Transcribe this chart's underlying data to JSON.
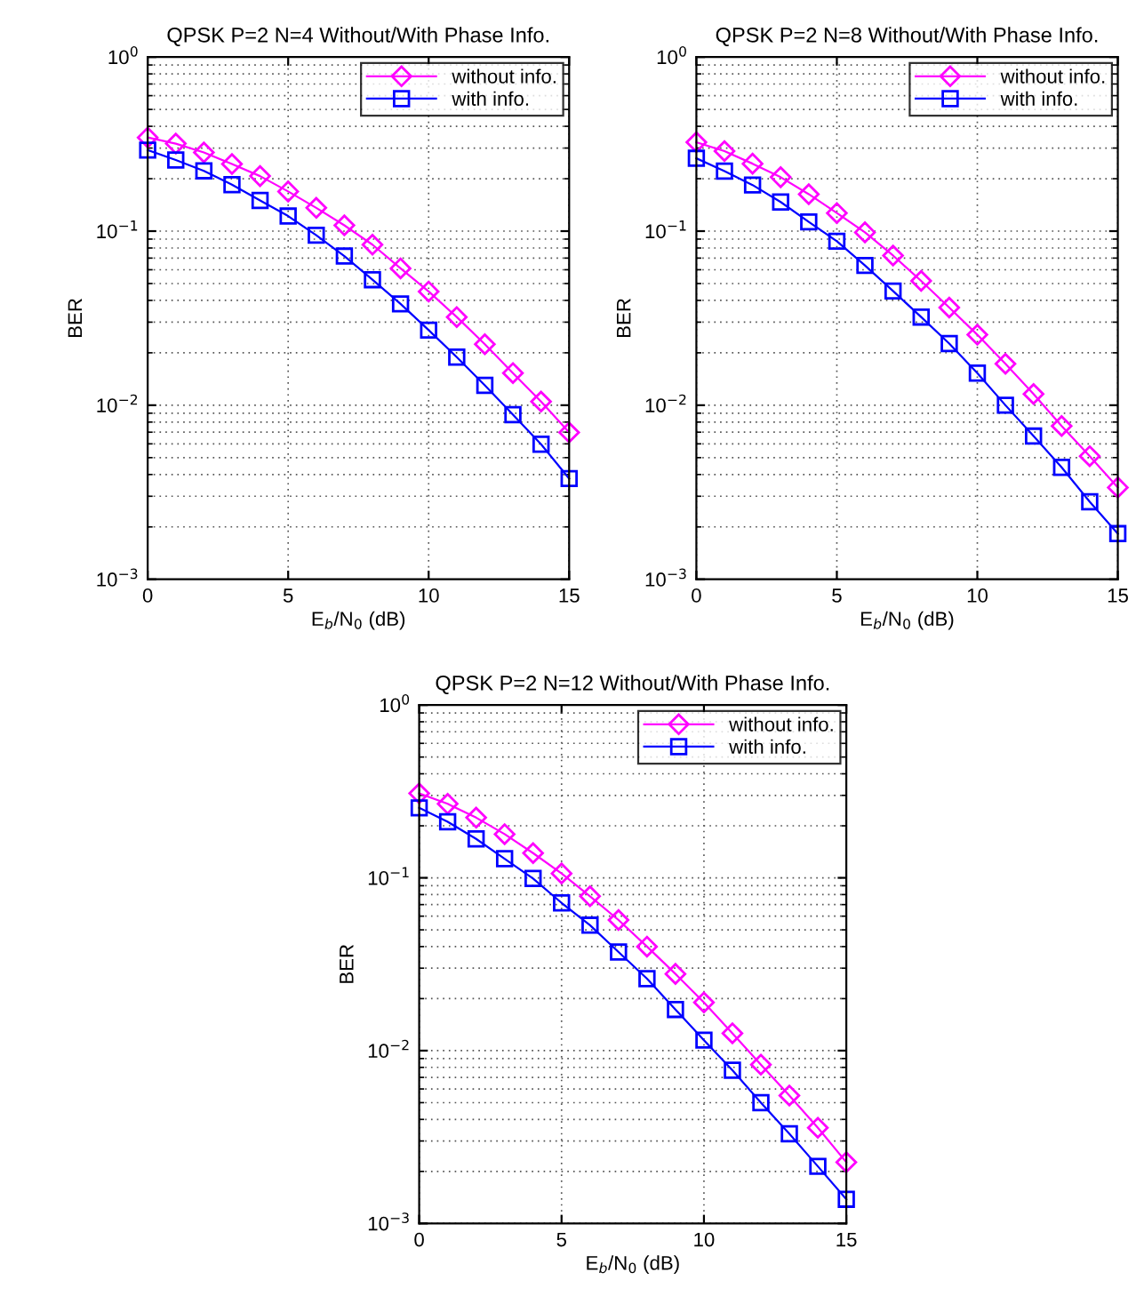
{
  "chart_data": [
    {
      "type": "line",
      "title": "QPSK P=2 N=4 Without/With Phase Info.",
      "xlabel": "E$_{b}$/N$_{0}$ (dB)",
      "ylabel": "BER",
      "log": "y",
      "grid": true,
      "legend": "top right",
      "x": [
        0,
        1,
        2,
        3,
        4,
        5,
        6,
        7,
        8,
        9,
        10,
        11,
        12,
        13,
        14,
        15
      ],
      "xlim": [
        0,
        15
      ],
      "xticks": [
        0,
        5,
        10,
        15
      ],
      "ylim": [
        0.001,
        1
      ],
      "yticks": [
        {
          "value": 0.001,
          "label": "10$^{−3}$"
        },
        {
          "value": 0.01,
          "label": "10$^{−2}$"
        },
        {
          "value": 0.1,
          "label": "10$^{−1}$"
        },
        {
          "value": 1,
          "label": "10$^{0}$"
        }
      ],
      "series": [
        {
          "name": "without info.",
          "color": "#ff00ff",
          "marker": "diamond",
          "values": [
            0.345,
            0.318,
            0.283,
            0.243,
            0.207,
            0.169,
            0.136,
            0.108,
            0.0836,
            0.0611,
            0.045,
            0.0321,
            0.0224,
            0.0153,
            0.0105,
            0.00698
          ]
        },
        {
          "name": "with info.",
          "color": "#0000ff",
          "marker": "square",
          "values": [
            0.292,
            0.256,
            0.222,
            0.185,
            0.15,
            0.122,
            0.0947,
            0.0719,
            0.0526,
            0.0382,
            0.027,
            0.0189,
            0.013,
            0.00883,
            0.00597,
            0.00379
          ]
        }
      ]
    },
    {
      "type": "line",
      "title": "QPSK P=2 N=8 Without/With Phase Info.",
      "xlabel": "E$_{b}$/N$_{0}$ (dB)",
      "ylabel": "BER",
      "log": "y",
      "grid": true,
      "legend": "top right",
      "x": [
        0,
        1,
        2,
        3,
        4,
        5,
        6,
        7,
        8,
        9,
        10,
        11,
        12,
        13,
        14,
        15
      ],
      "xlim": [
        0,
        15
      ],
      "xticks": [
        0,
        5,
        10,
        15
      ],
      "ylim": [
        0.001,
        1
      ],
      "yticks": [
        {
          "value": 0.001,
          "label": "10$^{−3}$"
        },
        {
          "value": 0.01,
          "label": "10$^{−2}$"
        },
        {
          "value": 0.1,
          "label": "10$^{−1}$"
        },
        {
          "value": 1,
          "label": "10$^{0}$"
        }
      ],
      "series": [
        {
          "name": "without info.",
          "color": "#ff00ff",
          "marker": "diamond",
          "values": [
            0.324,
            0.288,
            0.244,
            0.204,
            0.163,
            0.127,
            0.0984,
            0.0724,
            0.0518,
            0.0364,
            0.0254,
            0.0173,
            0.0116,
            0.0076,
            0.0051,
            0.00337
          ]
        },
        {
          "name": "with info.",
          "color": "#0000ff",
          "marker": "square",
          "values": [
            0.262,
            0.221,
            0.184,
            0.147,
            0.113,
            0.0875,
            0.0635,
            0.0453,
            0.0321,
            0.0226,
            0.0153,
            0.01,
            0.00665,
            0.0044,
            0.00279,
            0.00183
          ]
        }
      ]
    },
    {
      "type": "line",
      "title": "QPSK P=2 N=12 Without/With Phase Info.",
      "xlabel": "E$_{b}$/N$_{0}$ (dB)",
      "ylabel": "BER",
      "log": "y",
      "grid": true,
      "legend": "top right",
      "x": [
        0,
        1,
        2,
        3,
        4,
        5,
        6,
        7,
        8,
        9,
        10,
        11,
        12,
        13,
        14,
        15
      ],
      "xlim": [
        0,
        15
      ],
      "xticks": [
        0,
        5,
        10,
        15
      ],
      "ylim": [
        0.001,
        1
      ],
      "yticks": [
        {
          "value": 0.001,
          "label": "10$^{−3}$"
        },
        {
          "value": 0.01,
          "label": "10$^{−2}$"
        },
        {
          "value": 0.1,
          "label": "10$^{−1}$"
        },
        {
          "value": 1,
          "label": "10$^{0}$"
        }
      ],
      "series": [
        {
          "name": "without info.",
          "color": "#ff00ff",
          "marker": "diamond",
          "values": [
            0.308,
            0.268,
            0.223,
            0.179,
            0.139,
            0.106,
            0.0782,
            0.057,
            0.04,
            0.0278,
            0.019,
            0.0126,
            0.0083,
            0.0055,
            0.00358,
            0.00226
          ]
        },
        {
          "name": "with info.",
          "color": "#0000ff",
          "marker": "square",
          "values": [
            0.254,
            0.211,
            0.168,
            0.129,
            0.0991,
            0.0716,
            0.0532,
            0.0372,
            0.0261,
            0.0173,
            0.0115,
            0.0077,
            0.005,
            0.0033,
            0.00214,
            0.00138
          ]
        }
      ]
    }
  ]
}
